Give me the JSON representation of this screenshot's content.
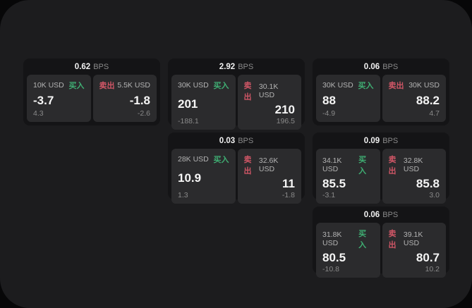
{
  "labels": {
    "bps": "BPS",
    "buy": "买入",
    "sell": "卖出"
  },
  "colors": {
    "panel_bg": "#1c1c1e",
    "card_bg": "#141416",
    "tile_bg": "#2b2b2d",
    "buy_accent": "#3fae73",
    "sell_accent": "#d05666"
  },
  "cards": [
    {
      "bps": "0.62",
      "buy": {
        "amount": "10K USD",
        "price": "-3.7",
        "delta": "4.3"
      },
      "sell": {
        "amount": "5.5K USD",
        "price": "-1.8",
        "delta": "-2.6"
      }
    },
    {
      "bps": "2.92",
      "buy": {
        "amount": "30K USD",
        "price": "201",
        "delta": "-188.1"
      },
      "sell": {
        "amount": "30.1K USD",
        "price": "210",
        "delta": "196.5"
      }
    },
    {
      "bps": "0.06",
      "buy": {
        "amount": "30K USD",
        "price": "88",
        "delta": "-4.9"
      },
      "sell": {
        "amount": "30K USD",
        "price": "88.2",
        "delta": "4.7"
      }
    },
    {
      "bps": "0.03",
      "buy": {
        "amount": "28K USD",
        "price": "10.9",
        "delta": "1.3"
      },
      "sell": {
        "amount": "32.6K USD",
        "price": "11",
        "delta": "-1.8"
      }
    },
    {
      "bps": "0.09",
      "buy": {
        "amount": "34.1K USD",
        "price": "85.5",
        "delta": "-3.1"
      },
      "sell": {
        "amount": "32.8K USD",
        "price": "85.8",
        "delta": "3.0"
      }
    },
    {
      "bps": "0.06",
      "buy": {
        "amount": "31.8K USD",
        "price": "80.5",
        "delta": "-10.8"
      },
      "sell": {
        "amount": "39.1K USD",
        "price": "80.7",
        "delta": "10.2"
      }
    }
  ]
}
